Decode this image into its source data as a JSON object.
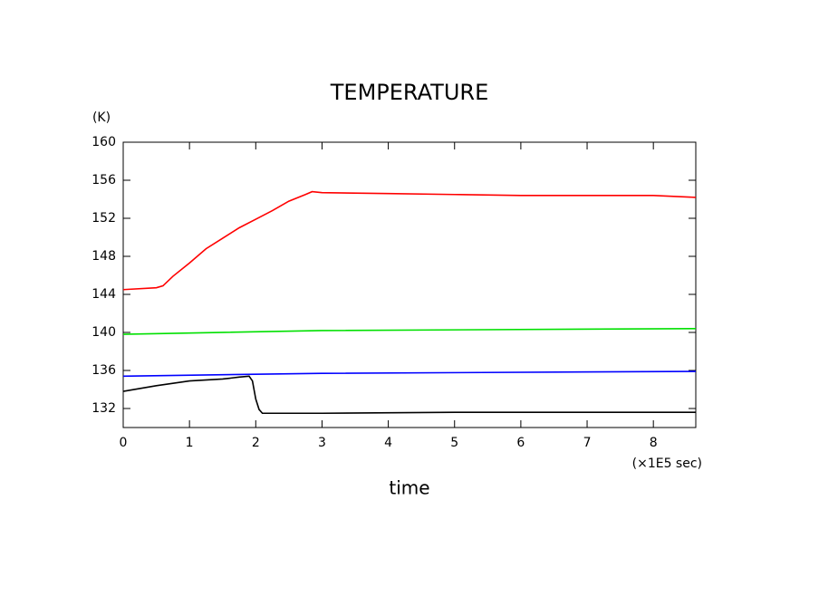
{
  "chart_data": {
    "type": "line",
    "title": "TEMPERATURE",
    "y_unit": "(K)",
    "x_unit": "(×1E5 sec)",
    "x_label": "time",
    "xlim": [
      0,
      8.64
    ],
    "xticks": [
      0,
      1,
      2,
      3,
      4,
      5,
      6,
      7,
      8
    ],
    "ylim": [
      130,
      160
    ],
    "yticks": [
      132,
      136,
      140,
      144,
      148,
      152,
      156,
      160
    ],
    "series": [
      {
        "color": "#ff0000",
        "x": [
          0,
          0.5,
          0.6,
          0.75,
          1,
          1.25,
          1.5,
          1.75,
          2,
          2.25,
          2.5,
          2.75,
          2.85,
          3,
          4,
          5,
          6,
          7,
          8,
          8.64
        ],
        "values": [
          144.5,
          144.7,
          144.9,
          145.9,
          147.3,
          148.8,
          149.9,
          151.0,
          151.9,
          152.8,
          153.8,
          154.5,
          154.8,
          154.7,
          154.6,
          154.5,
          154.4,
          154.4,
          154.4,
          154.2
        ]
      },
      {
        "color": "#00e000",
        "x": [
          0,
          3,
          8.64
        ],
        "values": [
          139.8,
          140.2,
          140.4
        ]
      },
      {
        "color": "#0000ff",
        "x": [
          0,
          3,
          8.64
        ],
        "values": [
          135.4,
          135.7,
          135.9
        ]
      },
      {
        "color": "#000000",
        "x": [
          0,
          0.5,
          1,
          1.5,
          1.75,
          1.9,
          1.95,
          2.0,
          2.05,
          2.1,
          3,
          5,
          7,
          8.64
        ],
        "values": [
          133.8,
          134.4,
          134.9,
          135.1,
          135.3,
          135.4,
          134.9,
          133.0,
          131.9,
          131.5,
          131.5,
          131.6,
          131.6,
          131.6
        ]
      }
    ]
  }
}
